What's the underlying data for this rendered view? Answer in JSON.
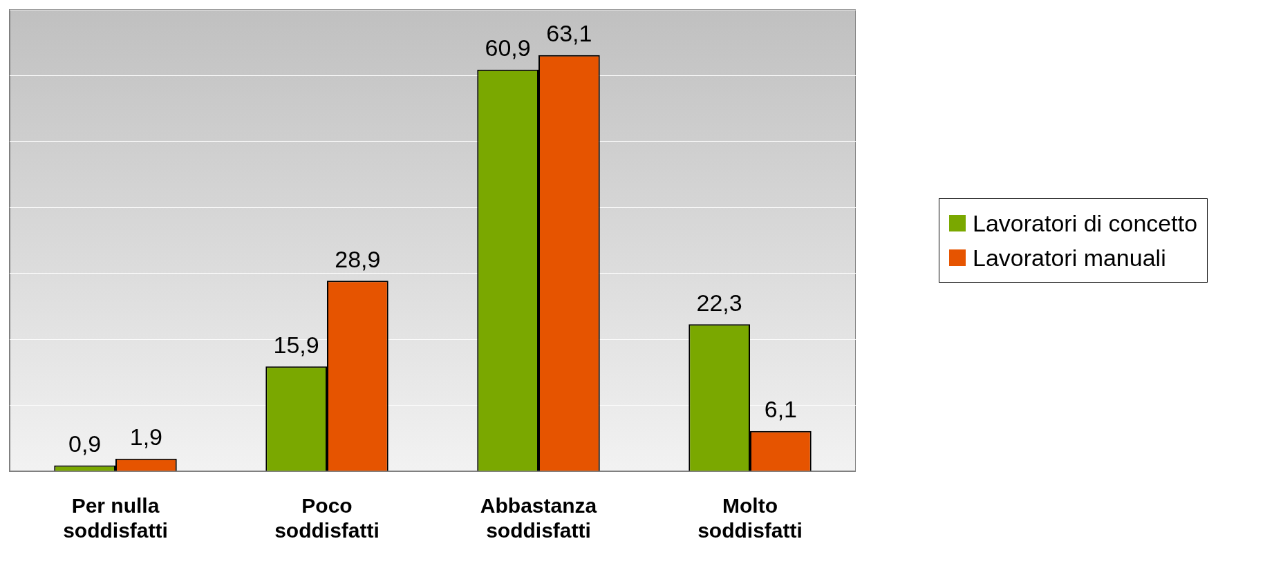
{
  "chart_data": {
    "type": "bar",
    "categories": [
      "Per nulla soddisfatti",
      "Poco soddisfatti",
      "Abbastanza soddisfatti",
      "Molto soddisfatti"
    ],
    "series": [
      {
        "name": "Lavoratori di concetto",
        "color": "#7aa800",
        "values": [
          0.9,
          15.9,
          60.9,
          22.3
        ],
        "value_labels": [
          "0,9",
          "15,9",
          "60,9",
          "22,3"
        ]
      },
      {
        "name": "Lavoratori manuali",
        "color": "#e65400",
        "values": [
          1.9,
          28.9,
          63.1,
          6.1
        ],
        "value_labels": [
          "1,9",
          "28,9",
          "63,1",
          "6,1"
        ]
      }
    ],
    "ylim": [
      0,
      70
    ],
    "yticks": [
      {
        "value": 0,
        "label": null
      },
      {
        "value": 10,
        "label": null
      },
      {
        "value": 20,
        "label": null
      },
      {
        "value": 30,
        "label": null
      },
      {
        "value": 40,
        "label": null
      },
      {
        "value": 50,
        "label": null
      },
      {
        "value": 60,
        "label": null
      },
      {
        "value": 70,
        "label": null
      }
    ],
    "grid": "y",
    "tick_labels": "x",
    "legend": "right"
  }
}
